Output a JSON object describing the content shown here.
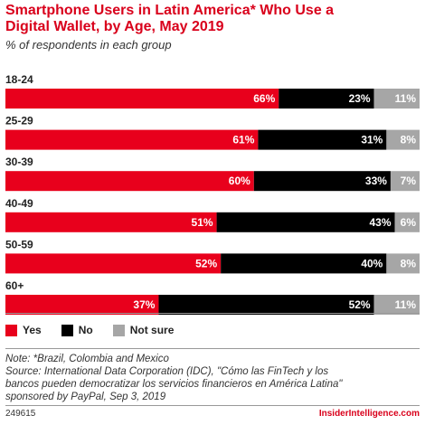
{
  "header": {
    "title_line1": "Smartphone Users in Latin America* Who Use a",
    "title_line2": "Digital Wallet, by Age, May 2019",
    "subtitle": "% of respondents in each group"
  },
  "notes": {
    "note": "Note: *Brazil, Colombia and Mexico",
    "source_line1": "Source: International Data Corporation (IDC), \"Cómo las FinTech y los",
    "source_line2": "bancos pueden democratizar los servicios financieros en América Latina\"",
    "source_line3": "sponsored by PayPal, Sep 3, 2019"
  },
  "footer": {
    "id": "249615",
    "brand": "InsiderIntelligence.com"
  },
  "colors": {
    "yes": "#e8001c",
    "no": "#000000",
    "not_sure": "#a6a6a6",
    "brand": "#d9001b"
  },
  "chart_data": {
    "type": "bar",
    "orientation": "horizontal",
    "stacked": true,
    "categories": [
      "18-24",
      "25-29",
      "30-39",
      "40-49",
      "50-59",
      "60+"
    ],
    "series": [
      {
        "name": "Yes",
        "values": [
          66,
          61,
          60,
          51,
          52,
          37
        ],
        "labels": [
          "66%",
          "61%",
          "60%",
          "51%",
          "52%",
          "37%"
        ]
      },
      {
        "name": "No",
        "values": [
          23,
          31,
          33,
          43,
          40,
          52
        ],
        "labels": [
          "23%",
          "31%",
          "33%",
          "43%",
          "40%",
          "52%"
        ]
      },
      {
        "name": "Not sure",
        "values": [
          11,
          8,
          7,
          6,
          8,
          11
        ],
        "labels": [
          "11%",
          "8%",
          "7%",
          "6%",
          "8%",
          "11%"
        ]
      }
    ],
    "xlim": [
      0,
      100
    ],
    "legend_position": "bottom-left",
    "grid": false
  }
}
